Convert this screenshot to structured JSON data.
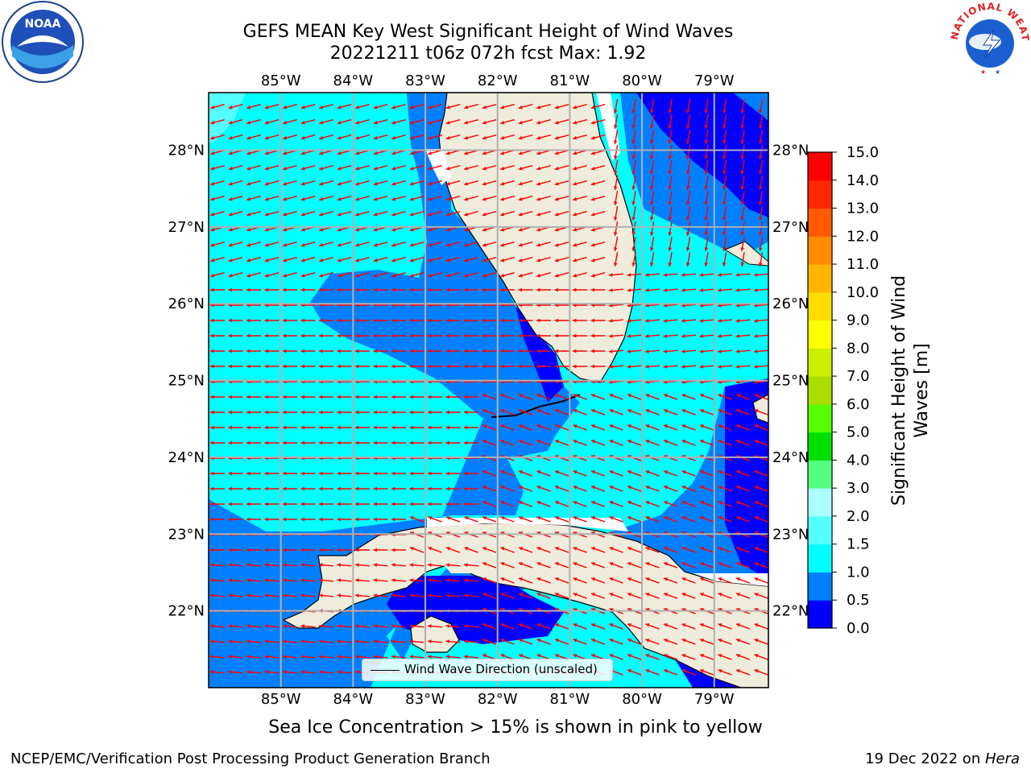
{
  "title": {
    "line1": "GEFS MEAN Key West Significant Height of Wind Waves",
    "line2": "20221211 t06z 072h fcst   Max: 1.92"
  },
  "logos": {
    "left": "noaa-logo",
    "right": "nws-logo",
    "nws_text": "NATIONAL WEATHER SERVICE",
    "noaa_text": "NOAA"
  },
  "map": {
    "lon_range": [
      -86.0,
      -78.25
    ],
    "lat_range": [
      21.0,
      28.75
    ],
    "lon_ticks": [
      {
        "value": -85,
        "label": "85°W"
      },
      {
        "value": -84,
        "label": "84°W"
      },
      {
        "value": -83,
        "label": "83°W"
      },
      {
        "value": -82,
        "label": "82°W"
      },
      {
        "value": -81,
        "label": "81°W"
      },
      {
        "value": -80,
        "label": "80°W"
      },
      {
        "value": -79,
        "label": "79°W"
      }
    ],
    "lat_ticks": [
      {
        "value": 28,
        "label": "28°N"
      },
      {
        "value": 27,
        "label": "27°N"
      },
      {
        "value": 26,
        "label": "26°N"
      },
      {
        "value": 25,
        "label": "25°N"
      },
      {
        "value": 24,
        "label": "24°N"
      },
      {
        "value": 23,
        "label": "23°N"
      },
      {
        "value": 22,
        "label": "22°N"
      }
    ],
    "grid": true,
    "land_color": "#efecdc",
    "arrow_color": "#ff0000",
    "legend": {
      "label": "Wind Wave Direction (unscaled)",
      "placement": "bottom-center"
    }
  },
  "colorbar": {
    "label": "Significant Height of Wind Waves [m]",
    "label_line1": "Significant Height of Wind",
    "label_line2": "Waves [m]",
    "ticks": [
      "0.0",
      "0.5",
      "1.0",
      "1.5",
      "2.0",
      "3.0",
      "4.0",
      "5.0",
      "6.0",
      "7.0",
      "8.0",
      "9.0",
      "10.0",
      "11.0",
      "12.0",
      "13.0",
      "14.0",
      "15.0"
    ],
    "colors": [
      "#0000ff",
      "#0080ff",
      "#00ffff",
      "#55ffff",
      "#aaffff",
      "#55ff80",
      "#00e000",
      "#55ff00",
      "#aadd00",
      "#ccee00",
      "#ffff00",
      "#ffdd00",
      "#ffb400",
      "#ff8c00",
      "#ff5a00",
      "#ff2800",
      "#ff0000"
    ]
  },
  "caption": "Sea Ice Concentration > 15% is shown in pink to yellow",
  "footer": {
    "left": "NCEP/EMC/Verification Post Processing Product Generation Branch",
    "right_date": "19 Dec 2022 on ",
    "right_host": "Hera"
  }
}
